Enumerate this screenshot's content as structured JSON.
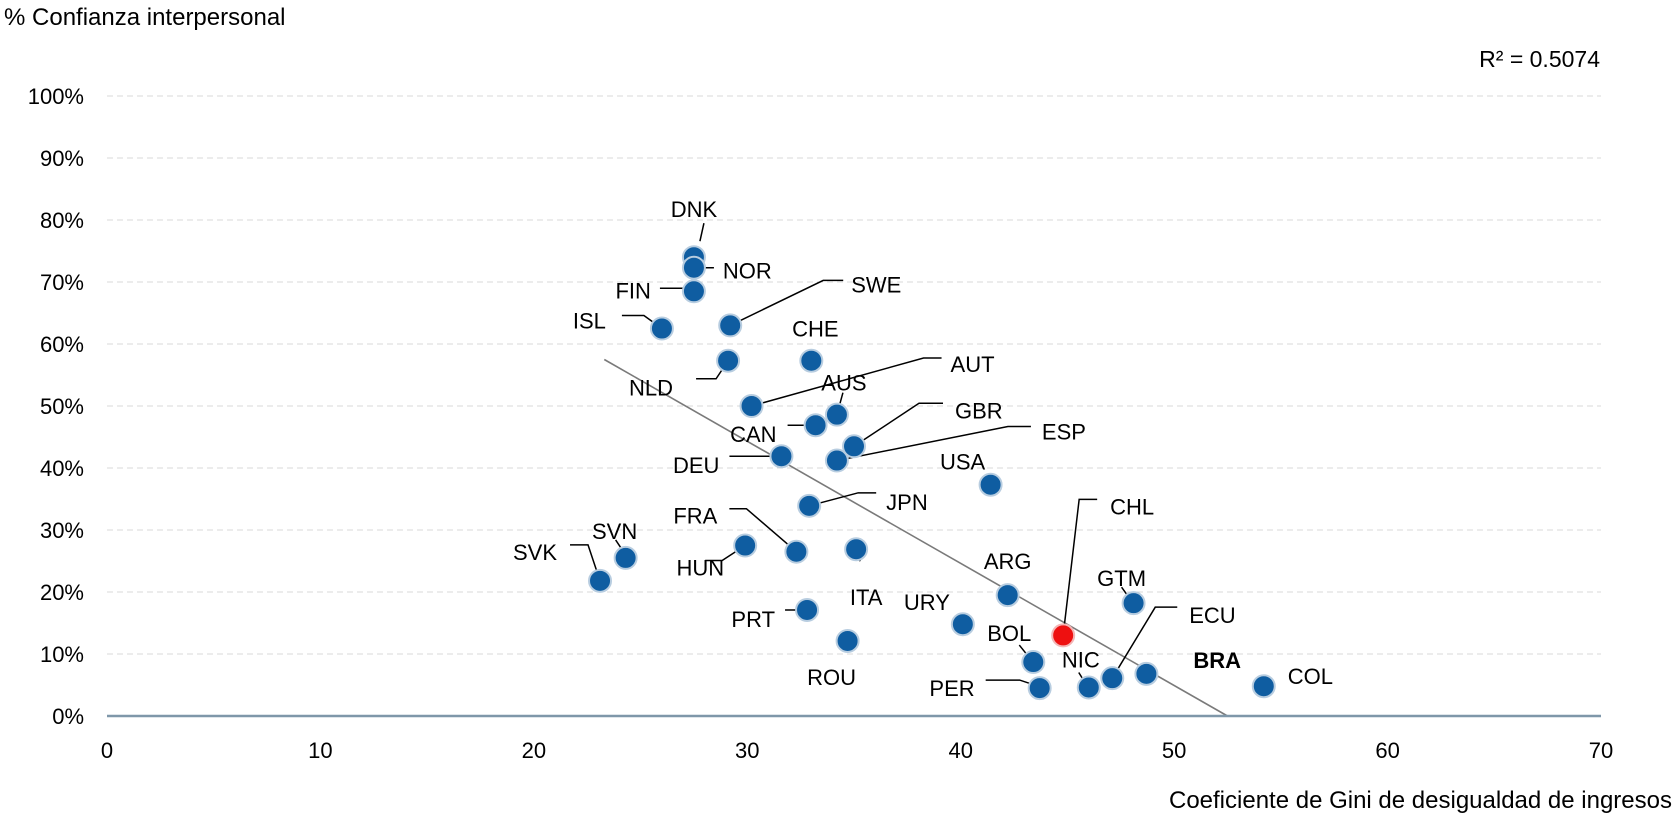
{
  "chart_data": {
    "type": "scatter",
    "ylabel": "% Confianza interpersonal",
    "xlabel": "Coeficiente de Gini de desigualdad de ingresos",
    "r_squared_label": "R² = 0.5074",
    "xlim": [
      0,
      70
    ],
    "ylim": [
      0,
      100
    ],
    "x_ticks": [
      "0",
      "10",
      "20",
      "30",
      "40",
      "50",
      "60",
      "70"
    ],
    "y_ticks": [
      "0%",
      "10%",
      "20%",
      "30%",
      "40%",
      "50%",
      "60%",
      "70%",
      "80%",
      "90%",
      "100%"
    ],
    "grid": "horizontal dashed",
    "trendline": {
      "x": [
        23.3,
        52.5
      ],
      "y": [
        57.5,
        0
      ]
    },
    "colors": {
      "point": "#0f5da1",
      "highlight": "#ee1010",
      "trend": "#7a7a7a",
      "axis": "#7f97a9",
      "grid": "#d8d8d8"
    },
    "points": [
      {
        "label": "DNK",
        "x": 27.5,
        "y": 74
      },
      {
        "label": "NOR",
        "x": 27.5,
        "y": 72.3
      },
      {
        "label": "FIN",
        "x": 27.5,
        "y": 68.5
      },
      {
        "label": "ISL",
        "x": 26.0,
        "y": 62.5
      },
      {
        "label": "SWE",
        "x": 29.2,
        "y": 63.0
      },
      {
        "label": "NLD",
        "x": 29.1,
        "y": 57.3
      },
      {
        "label": "CHE",
        "x": 33.0,
        "y": 57.3
      },
      {
        "label": "AUT",
        "x": 30.2,
        "y": 50.0
      },
      {
        "label": "AUS",
        "x": 34.2,
        "y": 48.6
      },
      {
        "label": "CAN",
        "x": 33.2,
        "y": 46.9
      },
      {
        "label": "GBR",
        "x": 35.0,
        "y": 43.5
      },
      {
        "label": "ESP",
        "x": 34.2,
        "y": 41.2
      },
      {
        "label": "DEU",
        "x": 31.6,
        "y": 41.9
      },
      {
        "label": "USA",
        "x": 41.4,
        "y": 37.3
      },
      {
        "label": "JPN",
        "x": 32.9,
        "y": 33.9
      },
      {
        "label": "FRA",
        "x": 32.3,
        "y": 26.5
      },
      {
        "label": "HUN",
        "x": 29.9,
        "y": 27.5
      },
      {
        "label": "ITA",
        "x": 35.1,
        "y": 26.9
      },
      {
        "label": "SVN",
        "x": 24.3,
        "y": 25.5
      },
      {
        "label": "SVK",
        "x": 23.1,
        "y": 21.8
      },
      {
        "label": "CHL",
        "x": 44.8,
        "y": 13.0,
        "highlight": true
      },
      {
        "label": "ARG",
        "x": 42.2,
        "y": 19.5
      },
      {
        "label": "GTM",
        "x": 48.1,
        "y": 18.2
      },
      {
        "label": "PRT",
        "x": 32.8,
        "y": 17.1
      },
      {
        "label": "URY",
        "x": 40.1,
        "y": 14.8
      },
      {
        "label": "ROU",
        "x": 34.7,
        "y": 12.1
      },
      {
        "label": "BOL",
        "x": 43.4,
        "y": 8.7
      },
      {
        "label": "ECU",
        "x": 47.1,
        "y": 6.1
      },
      {
        "label": "BRA",
        "x": 48.7,
        "y": 6.8,
        "bold": true
      },
      {
        "label": "NIC",
        "x": 46.0,
        "y": 4.6
      },
      {
        "label": "PER",
        "x": 43.7,
        "y": 4.5
      },
      {
        "label": "COL",
        "x": 54.2,
        "y": 4.8
      }
    ]
  }
}
